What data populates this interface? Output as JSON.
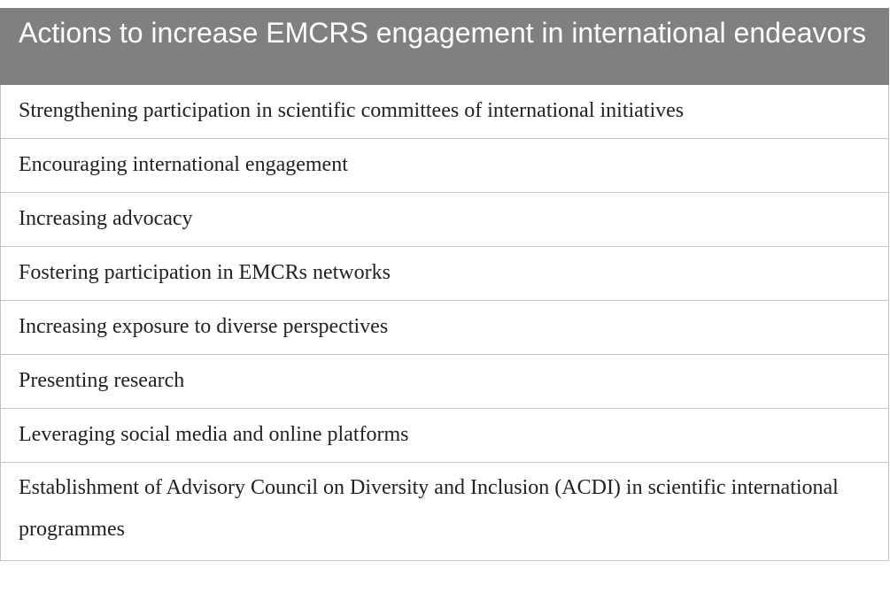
{
  "table": {
    "header": "Actions to increase EMCRS engagement in international endeavors",
    "rows": [
      "Strengthening participation in scientific committees of international initiatives",
      "Encouraging international engagement",
      "Increasing advocacy",
      "Fostering participation in EMCRs networks",
      "Increasing exposure to diverse perspectives",
      "Presenting research",
      "Leveraging social media and online platforms",
      "Establishment of Advisory Council on Diversity and Inclusion (ACDI) in scientific international programmes"
    ]
  }
}
